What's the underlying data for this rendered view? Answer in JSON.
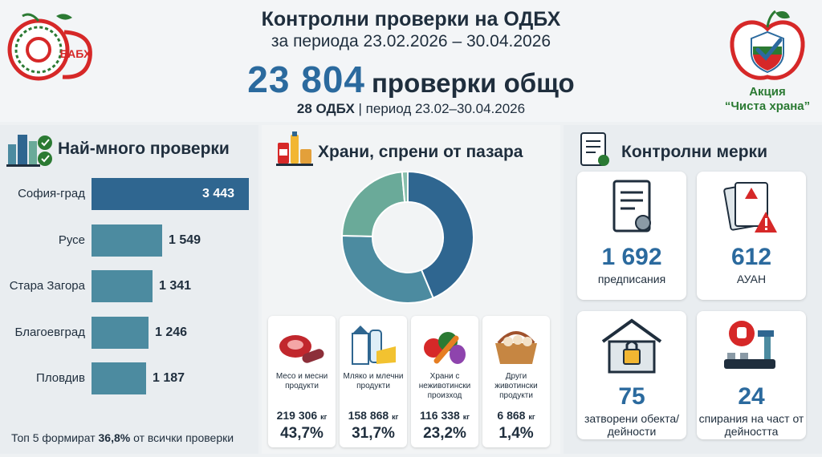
{
  "header": {
    "title": "Контролни проверки на ОДБХ",
    "period": "за периода 23.02.2026 – 30.04.2026",
    "total_number": "23 804",
    "total_label": "проверки общо",
    "sub_bold": "28 ОДБХ",
    "sub_rest": " | период 23.02–30.04.2026"
  },
  "logos": {
    "left_text": "БАБХ",
    "right_line1": "Акция",
    "right_line2": "“Чиста храна”"
  },
  "colors": {
    "accent": "#2b6a9e",
    "bar_primary": "#2f6690",
    "bar_secondary": "#4c8ba0",
    "donut_1": "#2f6690",
    "donut_2": "#4c8ba0",
    "donut_3": "#6aaa99",
    "donut_4": "#88bfad",
    "red": "#d62828",
    "green": "#2b7a33"
  },
  "left_panel": {
    "title": "Най-много проверки",
    "footnote_pre": "Топ 5 формират ",
    "footnote_bold": "36,8%",
    "footnote_post": " от всички проверки"
  },
  "mid_panel": {
    "title": "Храни, спрени от пазара",
    "cards": [
      {
        "label": "Месо и месни продукти",
        "kg": "219 306",
        "unit": "кг",
        "pct": "43,7%",
        "icon": "meat-icon"
      },
      {
        "label": "Мляко и млечни продукти",
        "kg": "158 868",
        "unit": "кг",
        "pct": "31,7%",
        "icon": "milk-icon"
      },
      {
        "label": "Храни с неживотински произход",
        "kg": "116 338",
        "unit": "кг",
        "pct": "23,2%",
        "icon": "vegetables-icon"
      },
      {
        "label": "Други животински продукти",
        "kg": "6 868",
        "unit": "кг",
        "pct": "1,4%",
        "icon": "basket-icon"
      }
    ]
  },
  "right_panel": {
    "title": "Контролни мерки",
    "measures": [
      {
        "number": "1 692",
        "label": "предписания",
        "icon": "certificate-icon"
      },
      {
        "number": "612",
        "label": "АУАН",
        "icon": "warning-documents-icon"
      },
      {
        "number": "75",
        "label": "затворени обекта/дейности",
        "icon": "locked-building-icon"
      },
      {
        "number": "24",
        "label": "спирания на част от дейността",
        "icon": "stop-production-icon"
      }
    ]
  },
  "chart_data": [
    {
      "type": "bar",
      "orientation": "horizontal",
      "title": "Най-много проверки",
      "categories": [
        "София-град",
        "Русе",
        "Стара Загора",
        "Благоевград",
        "Пловдив"
      ],
      "values": [
        3443,
        1549,
        1341,
        1246,
        1187
      ],
      "value_labels": [
        "3 443",
        "1 549",
        "1 341",
        "1 246",
        "1 187"
      ]
    },
    {
      "type": "pie",
      "title": "Храни, спрени от пазара",
      "categories": [
        "Месо и месни продукти",
        "Мляко и млечни продукти",
        "Храни с неживотински произход",
        "Други животински продукти"
      ],
      "values": [
        43.7,
        31.7,
        23.2,
        1.4
      ],
      "donut": true
    }
  ]
}
